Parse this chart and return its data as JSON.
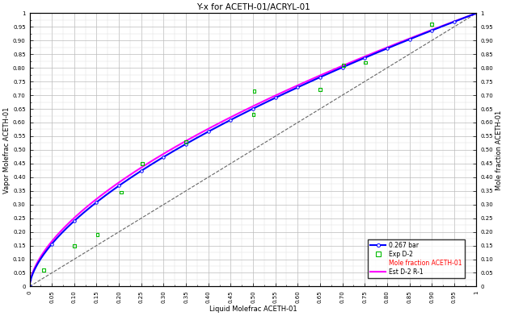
{
  "title": "Y-x for ACETH-01/ACRYL-01",
  "xlabel": "Liquid Molefrac ACETH-01",
  "ylabel_left": "Vapor Molefrac ACETH-01",
  "ylabel_right": "Mole fraction ACETH-01",
  "xlim": [
    0,
    1.0
  ],
  "ylim": [
    0,
    1.0
  ],
  "xticks": [
    0,
    0.05,
    0.1,
    0.15,
    0.2,
    0.25,
    0.3,
    0.35,
    0.4,
    0.45,
    0.5,
    0.55,
    0.6,
    0.65,
    0.7,
    0.75,
    0.8,
    0.85,
    0.9,
    0.95,
    1.0
  ],
  "yticks": [
    0,
    0.05,
    0.1,
    0.15,
    0.2,
    0.25,
    0.3,
    0.35,
    0.4,
    0.45,
    0.5,
    0.55,
    0.6,
    0.65,
    0.7,
    0.75,
    0.8,
    0.85,
    0.9,
    0.95,
    1.0
  ],
  "blue_line_label": "0.267 bar",
  "green_scatter_label": "Exp D-2",
  "red_text_label": "Mole fraction ACETH-01",
  "magenta_line_label": "Est D-2 R-1",
  "blue_line_color": "#0000FF",
  "green_scatter_color": "#00BB00",
  "magenta_line_color": "#FF00FF",
  "diagonal_color": "#666666",
  "background_color": "#FFFFFF",
  "grid_major_color": "#BBBBBB",
  "grid_minor_color": "#DDDDDD",
  "exp_x": [
    0.031,
    0.1,
    0.152,
    0.205,
    0.252,
    0.35,
    0.501,
    0.503,
    0.65,
    0.702,
    0.752,
    0.9
  ],
  "exp_y": [
    0.06,
    0.148,
    0.19,
    0.345,
    0.45,
    0.53,
    0.63,
    0.715,
    0.72,
    0.81,
    0.82,
    0.96
  ],
  "blue_exponent": 0.62,
  "magenta_exponent": 0.6,
  "tick_fontsize": 5.0,
  "label_fontsize": 6.0,
  "title_fontsize": 7.5
}
